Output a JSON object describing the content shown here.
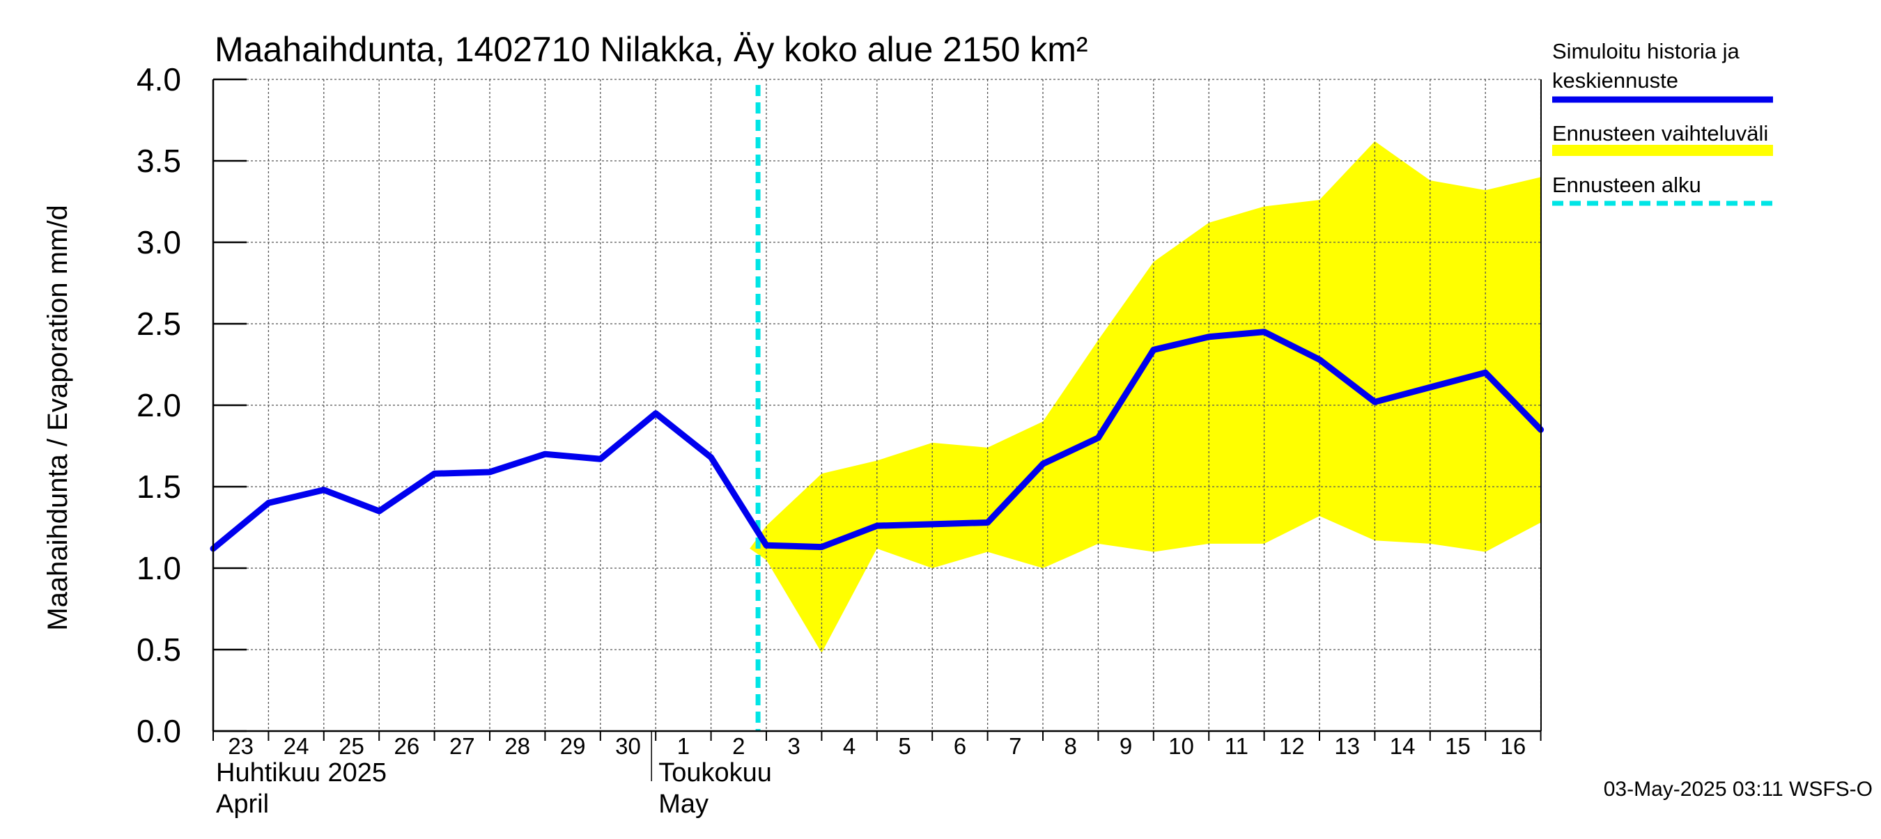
{
  "chart_data": {
    "type": "line",
    "title": "Maahaihdunta, 1402710 Nilakka, Äy koko alue 2150 km²",
    "ylabel": "Maahaihdunta / Evaporation   mm/d",
    "xlabel": "",
    "ylim": [
      0.0,
      4.0
    ],
    "yticks": [
      "0.0",
      "0.5",
      "1.0",
      "1.5",
      "2.0",
      "2.5",
      "3.0",
      "3.5",
      "4.0"
    ],
    "x_dates": [
      "2025-04-23",
      "2025-04-24",
      "2025-04-25",
      "2025-04-26",
      "2025-04-27",
      "2025-04-28",
      "2025-04-29",
      "2025-04-30",
      "2025-05-01",
      "2025-05-02",
      "2025-05-03",
      "2025-05-04",
      "2025-05-05",
      "2025-05-06",
      "2025-05-07",
      "2025-05-08",
      "2025-05-09",
      "2025-05-10",
      "2025-05-11",
      "2025-05-12",
      "2025-05-13",
      "2025-05-14",
      "2025-05-15",
      "2025-05-16",
      "2025-05-17"
    ],
    "x_tick_labels": [
      "23",
      "24",
      "25",
      "26",
      "27",
      "28",
      "29",
      "30",
      "1",
      "2",
      "3",
      "4",
      "5",
      "6",
      "7",
      "8",
      "9",
      "10",
      "11",
      "12",
      "13",
      "14",
      "15",
      "16"
    ],
    "month_labels": [
      {
        "line1": "Huhtikuu  2025",
        "line2": "April",
        "start_index": 0
      },
      {
        "line1": "Toukokuu",
        "line2": "May",
        "start_index": 8
      }
    ],
    "grid": true,
    "forecast_start_date": "2025-05-03",
    "forecast_start_index": 9.85,
    "series": [
      {
        "name": "Simuloitu historia ja keskiennuste",
        "color": "#0000ee",
        "style": "solid",
        "values": [
          1.12,
          1.4,
          1.48,
          1.35,
          1.58,
          1.59,
          1.7,
          1.67,
          1.95,
          1.68,
          1.14,
          1.13,
          1.26,
          1.27,
          1.28,
          1.64,
          1.8,
          2.34,
          2.42,
          2.45,
          2.28,
          2.02,
          2.11,
          2.2,
          1.85
        ]
      }
    ],
    "band": {
      "name": "Ennusteen vaihteluväli",
      "color": "#ffff00",
      "start_index": 9.7,
      "start_value": 1.12,
      "indices": [
        10,
        11,
        12,
        13,
        14,
        15,
        16,
        17,
        18,
        19,
        20,
        21,
        22,
        23,
        24
      ],
      "upper": [
        1.26,
        1.58,
        1.66,
        1.77,
        1.74,
        1.9,
        2.4,
        2.88,
        3.12,
        3.22,
        3.26,
        3.62,
        3.38,
        3.32,
        3.4
      ],
      "lower": [
        1.05,
        0.48,
        1.12,
        1.0,
        1.1,
        1.0,
        1.15,
        1.1,
        1.15,
        1.15,
        1.32,
        1.17,
        1.15,
        1.1,
        1.28
      ]
    },
    "legend": {
      "placement": "right",
      "entries": [
        {
          "line1": "Simuloitu historia ja",
          "line2": "keskiennuste",
          "color": "#0000ee",
          "style": "solid"
        },
        {
          "line1": "Ennusteen vaihteluväli",
          "line2": "",
          "color": "#ffff00",
          "style": "band"
        },
        {
          "line1": "Ennusteen alku",
          "line2": "",
          "color": "#00e5e5",
          "style": "dashed"
        }
      ]
    },
    "footer": "03-May-2025 03:11 WSFS-O"
  }
}
